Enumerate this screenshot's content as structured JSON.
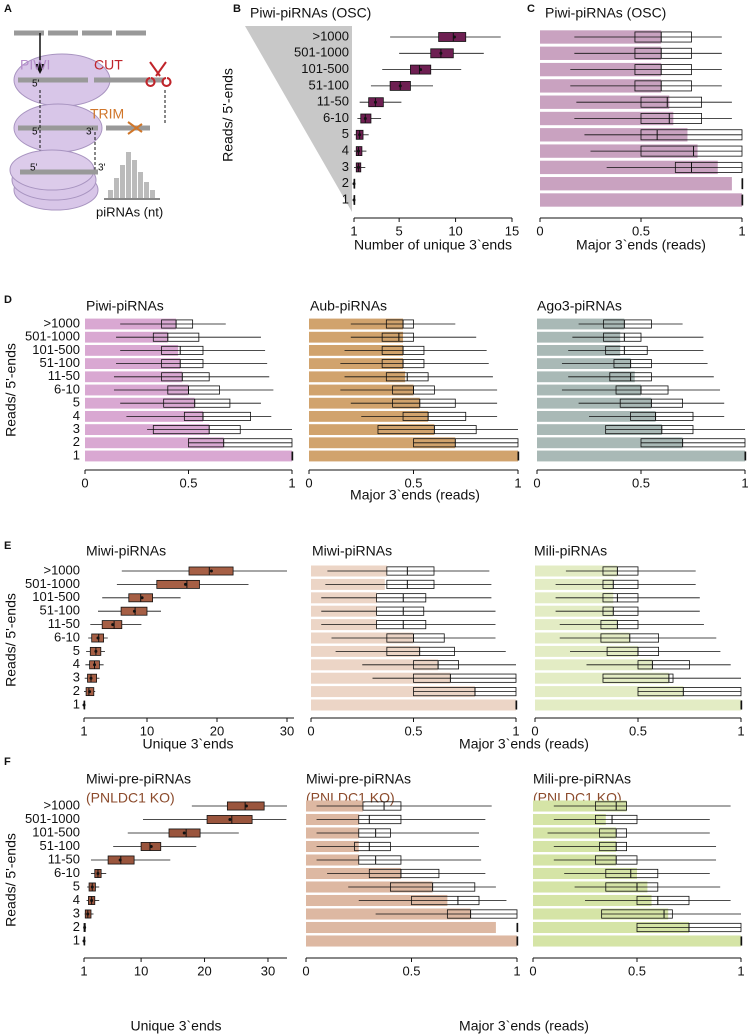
{
  "panel_a": {
    "letter": "A",
    "piwi": "PIWI",
    "cut": "CUT",
    "trim": "TRIM",
    "five_prime": "5'",
    "three_prime": "3'",
    "hist_label": "piRNAs (nt)"
  },
  "chart_data": [
    {
      "type": "box",
      "panel": "B",
      "title": "Piwi-piRNAs (OSC)",
      "ylabel": "Reads/ 5'-ends",
      "xlabel": "Number of unique 3`ends",
      "categories": [
        ">1000",
        "501-1000",
        "101-500",
        "51-100",
        "11-50",
        "6-10",
        "5",
        "4",
        "3",
        "2",
        "1"
      ],
      "xlim": [
        1,
        15
      ],
      "xticks": [
        1,
        5,
        10,
        15
      ],
      "color": "#6e1f52",
      "box": {
        "low": [
          4.2,
          5,
          3.5,
          2.5,
          1.5,
          1.3,
          1,
          1,
          1,
          1,
          1
        ],
        "q1": [
          8.5,
          7.8,
          6,
          4.2,
          2.3,
          1.6,
          1.2,
          1.2,
          1.2,
          1,
          1
        ],
        "median": [
          9.8,
          8.7,
          6.8,
          5.1,
          2.9,
          2,
          1.5,
          1.4,
          1.4,
          1,
          1
        ],
        "q3": [
          10.9,
          9.8,
          7.8,
          6,
          3.6,
          2.5,
          1.8,
          1.7,
          1.6,
          1,
          1
        ],
        "high": [
          14,
          12.5,
          10.5,
          8,
          5.2,
          3.4,
          2.3,
          2.1,
          2,
          1.1,
          1
        ],
        "mean": [
          9.9,
          8.7,
          6.9,
          5.1,
          2.9,
          2,
          1.5,
          1.4,
          1.4,
          1,
          1
        ]
      }
    },
    {
      "type": "bar",
      "panel": "C",
      "title": "Piwi-piRNAs (OSC)",
      "xlabel": "Major 3`ends (reads)",
      "xlim": [
        0,
        1
      ],
      "xticks": [
        0,
        0.5,
        1
      ],
      "color": "#c9a2c0",
      "values": [
        0.6,
        0.6,
        0.6,
        0.6,
        0.64,
        0.66,
        0.73,
        0.78,
        0.88,
        0.95,
        1
      ],
      "box": {
        "low": [
          0.17,
          0.17,
          0.15,
          0.15,
          0.18,
          0.17,
          0.22,
          0.25,
          0.33,
          1,
          1
        ],
        "q1": [
          0.47,
          0.47,
          0.47,
          0.47,
          0.5,
          0.5,
          0.5,
          0.5,
          0.67,
          1,
          1
        ],
        "median": [
          0.6,
          0.6,
          0.6,
          0.6,
          0.63,
          0.64,
          0.58,
          0.76,
          0.75,
          1,
          1
        ],
        "q3": [
          0.75,
          0.75,
          0.75,
          0.75,
          0.8,
          0.8,
          1,
          1,
          1,
          1,
          1
        ],
        "high": [
          0.9,
          0.9,
          0.9,
          0.9,
          0.95,
          0.95,
          1,
          1,
          1,
          1,
          1
        ]
      }
    },
    {
      "type": "bar",
      "panel": "D",
      "title": "Piwi-piRNAs",
      "ylabel": "Reads/ 5'-ends",
      "xlabel": "Major 3`ends (reads)",
      "categories": [
        ">1000",
        "501-1000",
        "101-500",
        "51-100",
        "11-50",
        "6-10",
        "5",
        "4",
        "3",
        "2",
        "1"
      ],
      "xlim": [
        0,
        1
      ],
      "xticks": [
        0,
        0.5,
        1
      ],
      "color": "#d9a8d2",
      "values": [
        0.44,
        0.4,
        0.45,
        0.46,
        0.47,
        0.5,
        0.53,
        0.57,
        0.6,
        0.67,
        1
      ],
      "box": {
        "low": [
          0.17,
          0.15,
          0.17,
          0.15,
          0.14,
          0.14,
          0.17,
          0.2,
          0.3,
          0.5,
          1
        ],
        "q1": [
          0.37,
          0.33,
          0.37,
          0.37,
          0.37,
          0.4,
          0.38,
          0.48,
          0.33,
          0.5,
          1
        ],
        "median": [
          0.44,
          0.4,
          0.46,
          0.46,
          0.47,
          0.5,
          0.53,
          0.57,
          0.6,
          0.67,
          1
        ],
        "q3": [
          0.52,
          0.55,
          0.57,
          0.57,
          0.6,
          0.65,
          0.7,
          0.8,
          0.75,
          1,
          1
        ],
        "high": [
          0.68,
          0.85,
          0.87,
          0.88,
          0.89,
          0.91,
          0.85,
          0.9,
          1,
          1,
          1
        ]
      }
    },
    {
      "type": "bar",
      "title": "Aub-piRNAs",
      "xlim": [
        0,
        1
      ],
      "xticks": [
        0,
        0.5,
        1
      ],
      "color": "#d1a36d",
      "values": [
        0.45,
        0.45,
        0.45,
        0.45,
        0.46,
        0.5,
        0.53,
        0.57,
        0.6,
        0.7,
        1
      ],
      "box": {
        "low": [
          0.2,
          0.2,
          0.17,
          0.15,
          0.17,
          0.15,
          0.2,
          0.25,
          0.33,
          0.5,
          1
        ],
        "q1": [
          0.37,
          0.35,
          0.35,
          0.35,
          0.37,
          0.4,
          0.4,
          0.45,
          0.33,
          0.5,
          1
        ],
        "median": [
          0.45,
          0.43,
          0.45,
          0.45,
          0.47,
          0.5,
          0.53,
          0.57,
          0.6,
          0.7,
          1
        ],
        "q3": [
          0.5,
          0.5,
          0.55,
          0.55,
          0.57,
          0.6,
          0.7,
          0.75,
          0.8,
          1,
          1
        ],
        "high": [
          0.7,
          0.8,
          0.85,
          0.86,
          0.88,
          0.9,
          0.9,
          0.9,
          1,
          1,
          1
        ]
      }
    },
    {
      "type": "bar",
      "title": "Ago3-piRNAs",
      "xlim": [
        0,
        1
      ],
      "xticks": [
        0,
        0.5,
        1
      ],
      "color": "#a9b9b6",
      "values": [
        0.42,
        0.4,
        0.4,
        0.45,
        0.47,
        0.5,
        0.55,
        0.57,
        0.6,
        0.7,
        1
      ],
      "box": {
        "low": [
          0.2,
          0.17,
          0.15,
          0.12,
          0.15,
          0.12,
          0.2,
          0.25,
          0.33,
          0.5,
          1
        ],
        "q1": [
          0.32,
          0.32,
          0.33,
          0.37,
          0.35,
          0.38,
          0.4,
          0.45,
          0.33,
          0.5,
          1
        ],
        "median": [
          0.42,
          0.42,
          0.42,
          0.45,
          0.45,
          0.5,
          0.55,
          0.57,
          0.6,
          0.7,
          1
        ],
        "q3": [
          0.55,
          0.5,
          0.53,
          0.55,
          0.55,
          0.63,
          0.7,
          0.75,
          0.75,
          1,
          1
        ],
        "high": [
          0.7,
          0.8,
          0.8,
          0.82,
          0.85,
          0.88,
          0.9,
          0.9,
          1,
          1,
          1
        ]
      }
    },
    {
      "type": "box",
      "panel": "E",
      "title": "Miwi-piRNAs",
      "ylabel": "Reads/ 5'-ends",
      "xlabel": "Unique 3`ends",
      "categories": [
        ">1000",
        "501-1000",
        "101-500",
        "51-100",
        "11-50",
        "6-10",
        "5",
        "4",
        "3",
        "2",
        "1"
      ],
      "xlim": [
        1,
        31
      ],
      "xticks": [
        1,
        10,
        20,
        30
      ],
      "color": "#a65f45",
      "box": {
        "low": [
          6.4,
          5.7,
          3.6,
          3,
          1.9,
          1.6,
          1.3,
          1.2,
          1.1,
          1,
          1
        ],
        "q1": [
          16,
          11.4,
          7.4,
          6.3,
          3.6,
          2.1,
          1.9,
          1.8,
          1.5,
          1.3,
          1
        ],
        "median": [
          18.9,
          15.7,
          9.1,
          8.3,
          5.3,
          3.1,
          2.7,
          2.5,
          2,
          1.7,
          1
        ],
        "q3": [
          22.3,
          17.5,
          10.8,
          10,
          6.4,
          3.8,
          3.4,
          3.2,
          2.8,
          2.4,
          1
        ],
        "high": [
          30,
          24.5,
          14.8,
          12,
          9.2,
          4.4,
          4,
          3.8,
          3.2,
          2.6,
          1
        ],
        "mean": [
          19.2,
          15.5,
          9.3,
          8.2,
          5.1,
          3,
          2.7,
          2.5,
          2,
          1.8,
          1
        ]
      }
    },
    {
      "type": "bar",
      "title": "Miwi-piRNAs",
      "xlabel": "Major 3`ends (reads)",
      "xlim": [
        0,
        1
      ],
      "xticks": [
        0,
        0.5,
        1
      ],
      "color": "#ecd5c6",
      "values": [
        0.37,
        0.36,
        0.32,
        0.32,
        0.32,
        0.5,
        0.53,
        0.62,
        0.68,
        0.8,
        1
      ],
      "box": {
        "low": [
          0.08,
          0.07,
          0.05,
          0.05,
          0.05,
          0.1,
          0.12,
          0.25,
          0.3,
          0.5,
          1
        ],
        "q1": [
          0.37,
          0.37,
          0.32,
          0.32,
          0.32,
          0.37,
          0.37,
          0.5,
          0.5,
          0.5,
          1
        ],
        "median": [
          0.47,
          0.47,
          0.45,
          0.45,
          0.45,
          0.5,
          0.53,
          0.62,
          0.68,
          0.8,
          1
        ],
        "q3": [
          0.6,
          0.6,
          0.56,
          0.55,
          0.56,
          0.65,
          0.7,
          0.72,
          1,
          1,
          1
        ],
        "high": [
          0.87,
          0.88,
          0.88,
          0.9,
          0.9,
          0.9,
          0.95,
          1,
          1,
          1,
          1
        ]
      }
    },
    {
      "type": "bar",
      "title": "Mili-piRNAs",
      "xlim": [
        0,
        1
      ],
      "xticks": [
        0,
        0.5,
        1
      ],
      "color": "#e3ecc4",
      "values": [
        0.4,
        0.38,
        0.38,
        0.38,
        0.4,
        0.46,
        0.5,
        0.57,
        0.65,
        0.72,
        1
      ],
      "box": {
        "low": [
          0.15,
          0.1,
          0.1,
          0.1,
          0.12,
          0.12,
          0.17,
          0.25,
          0.33,
          0.5,
          1
        ],
        "q1": [
          0.33,
          0.33,
          0.33,
          0.33,
          0.32,
          0.32,
          0.35,
          0.5,
          0.33,
          0.5,
          1
        ],
        "median": [
          0.4,
          0.38,
          0.4,
          0.38,
          0.4,
          0.46,
          0.5,
          0.57,
          0.65,
          0.72,
          1
        ],
        "q3": [
          0.5,
          0.5,
          0.5,
          0.5,
          0.5,
          0.6,
          0.6,
          0.75,
          0.67,
          1,
          1
        ],
        "high": [
          0.78,
          0.78,
          0.8,
          0.8,
          0.82,
          0.88,
          0.9,
          0.95,
          1,
          1,
          1
        ]
      }
    },
    {
      "type": "box",
      "panel": "F",
      "title": "Miwi-pre-piRNAs",
      "subtitle": "(PNLDC1 KO)",
      "subtitle_color": "#8b4a2b",
      "ylabel": "Reads/ 5'-ends",
      "xlabel": "Unique 3`ends",
      "categories": [
        ">1000",
        "501-1000",
        "101-500",
        "51-100",
        "11-50",
        "6-10",
        "5",
        "4",
        "3",
        "2",
        "1"
      ],
      "xlim": [
        1,
        33
      ],
      "xticks": [
        1,
        10,
        20,
        30
      ],
      "color": "#9a553d",
      "box": {
        "low": [
          18,
          10.3,
          7.9,
          5.6,
          2.1,
          2.1,
          1.5,
          1.4,
          1.1,
          1,
          1
        ],
        "q1": [
          23.6,
          20.4,
          14.4,
          10,
          4.8,
          2.7,
          1.8,
          1.7,
          1.2,
          1,
          1
        ],
        "median": [
          26.4,
          24.3,
          17.1,
          11.4,
          6.8,
          3.2,
          2.3,
          2.2,
          1.6,
          1.1,
          1
        ],
        "q3": [
          29.4,
          27.5,
          19.3,
          13.1,
          8.9,
          3.7,
          2.8,
          2.7,
          2.1,
          1.2,
          1
        ],
        "high": [
          33,
          32.9,
          25.4,
          18.7,
          14.6,
          4.5,
          3.4,
          3.4,
          2.5,
          1.3,
          1
        ],
        "mean": [
          26.6,
          24,
          16.8,
          11.6,
          6.7,
          3.2,
          2.3,
          2.2,
          1.6,
          1.1,
          1
        ]
      }
    },
    {
      "type": "bar",
      "title": "Miwi-pre-piRNAs",
      "subtitle": "(PNLDC1 KO)",
      "subtitle_color": "#8b4a2b",
      "xlabel": "Major 3`ends (reads)",
      "xlim": [
        0,
        1
      ],
      "xticks": [
        0,
        0.5,
        1
      ],
      "color": "#ddb8a2",
      "values": [
        0.27,
        0.25,
        0.25,
        0.25,
        0.25,
        0.45,
        0.6,
        0.67,
        0.78,
        0.9,
        1
      ],
      "box": {
        "low": [
          0.05,
          0.05,
          0.05,
          0.05,
          0.05,
          0.1,
          0.2,
          0.25,
          0.33,
          1,
          1
        ],
        "q1": [
          0.27,
          0.25,
          0.25,
          0.23,
          0.25,
          0.3,
          0.4,
          0.5,
          0.67,
          1,
          1
        ],
        "median": [
          0.37,
          0.3,
          0.33,
          0.3,
          0.33,
          0.45,
          0.6,
          0.72,
          0.78,
          1,
          1
        ],
        "q3": [
          0.45,
          0.45,
          0.4,
          0.4,
          0.45,
          0.63,
          0.8,
          0.82,
          1,
          1,
          1
        ],
        "high": [
          0.88,
          0.85,
          0.82,
          0.82,
          0.83,
          0.85,
          0.9,
          0.95,
          1,
          1,
          1
        ]
      }
    },
    {
      "type": "bar",
      "title": "Mili-pre-piRNAs",
      "subtitle": "(PNLDC1 KO)",
      "subtitle_color": "#8b4a2b",
      "xlim": [
        0,
        1
      ],
      "xticks": [
        0,
        0.5,
        1
      ],
      "color": "#d5e4a6",
      "values": [
        0.45,
        0.35,
        0.4,
        0.4,
        0.4,
        0.5,
        0.55,
        0.57,
        0.65,
        0.75,
        1
      ],
      "box": {
        "low": [
          0.1,
          0.1,
          0.07,
          0.1,
          0.1,
          0.15,
          0.2,
          0.25,
          0.33,
          0.5,
          1
        ],
        "q1": [
          0.3,
          0.3,
          0.32,
          0.32,
          0.3,
          0.35,
          0.35,
          0.5,
          0.33,
          0.5,
          1
        ],
        "median": [
          0.4,
          0.38,
          0.4,
          0.4,
          0.4,
          0.47,
          0.5,
          0.6,
          0.63,
          0.75,
          1
        ],
        "q3": [
          0.45,
          0.5,
          0.45,
          0.45,
          0.5,
          0.6,
          0.6,
          0.75,
          0.67,
          1,
          1
        ],
        "high": [
          0.95,
          0.85,
          0.85,
          0.88,
          0.88,
          0.85,
          0.9,
          0.95,
          1,
          1,
          1
        ]
      }
    }
  ]
}
